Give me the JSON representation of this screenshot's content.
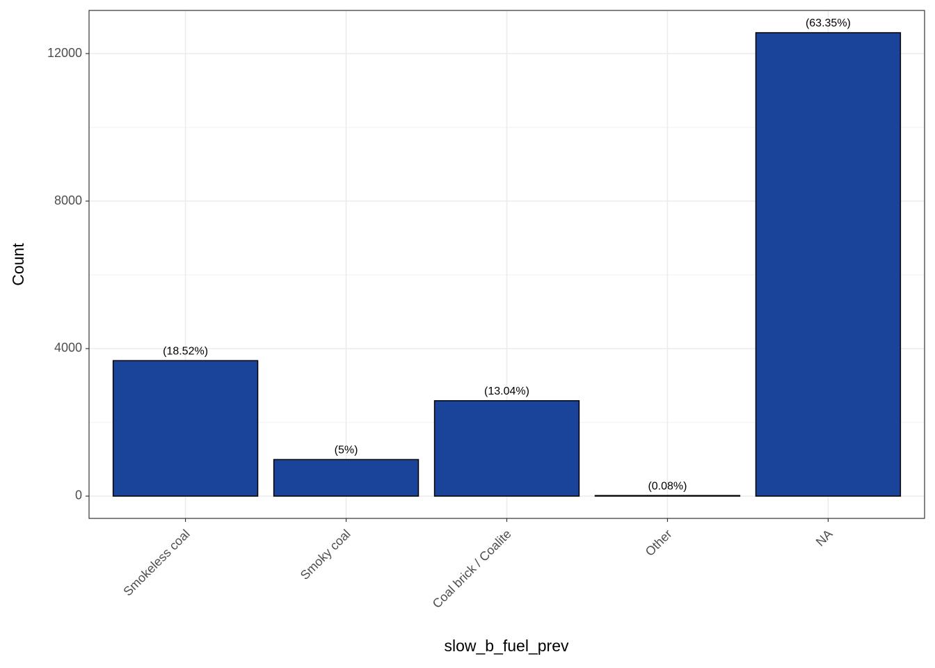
{
  "chart_data": {
    "type": "bar",
    "x_label": "slow_b_fuel_prev",
    "y_label": "Count",
    "categories": [
      "Smokeless coal",
      "Smoky coal",
      "Coal brick / Coalite",
      "Other",
      "NA"
    ],
    "values": [
      3674,
      992,
      2587,
      16,
      12566
    ],
    "bar_labels": [
      "(18.52%)",
      "(5%)",
      "(13.04%)",
      "(0.08%)",
      "(63.35%)"
    ],
    "color": "#1a4499",
    "ylim": [
      -604,
      13170
    ],
    "yticks": [
      0,
      4000,
      8000,
      12000
    ],
    "y_minor_grid": [
      2000,
      6000,
      10000
    ],
    "grid": true
  }
}
